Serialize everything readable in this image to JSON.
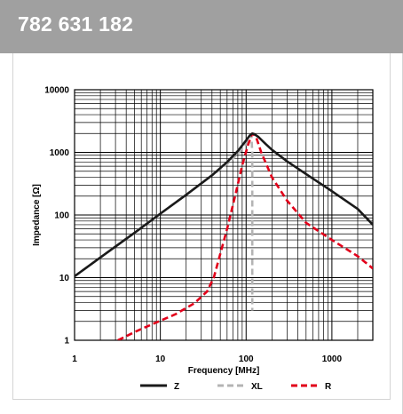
{
  "header": {
    "title": "782 631 182"
  },
  "colors": {
    "header_bg": "#a0a0a0",
    "z": "#1a1a1a",
    "xl": "#b4b4b4",
    "r": "#e2001a"
  },
  "chart_data": {
    "type": "line",
    "title": "",
    "xlabel": "Frequency [MHz]",
    "ylabel": "Impedance [Ω]",
    "x_scale": "log",
    "y_scale": "log",
    "xlim": [
      1,
      3000
    ],
    "ylim": [
      1,
      10000
    ],
    "grid": true,
    "legend_position": "bottom",
    "x_ticks": [
      {
        "value": 1,
        "label": "1"
      },
      {
        "value": 10,
        "label": "10"
      },
      {
        "value": 100,
        "label": "100"
      },
      {
        "value": 1000,
        "label": "1000"
      }
    ],
    "y_ticks": [
      {
        "value": 1,
        "label": "1"
      },
      {
        "value": 10,
        "label": "10"
      },
      {
        "value": 100,
        "label": "100"
      },
      {
        "value": 1000,
        "label": "1000"
      },
      {
        "value": 10000,
        "label": "10000"
      }
    ],
    "series": [
      {
        "name": "Z",
        "style": "solid",
        "color": "#1a1a1a",
        "points": [
          [
            1,
            10.5
          ],
          [
            2,
            21
          ],
          [
            5,
            52
          ],
          [
            10,
            105
          ],
          [
            20,
            210
          ],
          [
            40,
            430
          ],
          [
            60,
            700
          ],
          [
            80,
            1050
          ],
          [
            100,
            1550
          ],
          [
            110,
            1850
          ],
          [
            118,
            2000
          ],
          [
            125,
            1950
          ],
          [
            140,
            1750
          ],
          [
            170,
            1350
          ],
          [
            200,
            1100
          ],
          [
            300,
            720
          ],
          [
            500,
            450
          ],
          [
            1000,
            240
          ],
          [
            2000,
            125
          ],
          [
            3000,
            70
          ]
        ]
      },
      {
        "name": "XL",
        "style": "dashed",
        "color": "#b4b4b4",
        "points": [
          [
            1,
            10.5
          ],
          [
            2,
            21
          ],
          [
            5,
            52
          ],
          [
            10,
            105
          ],
          [
            20,
            210
          ],
          [
            40,
            430
          ],
          [
            60,
            650
          ],
          [
            80,
            950
          ],
          [
            100,
            1350
          ],
          [
            110,
            1700
          ],
          [
            115,
            1900
          ],
          [
            118,
            1000
          ],
          [
            118,
            3
          ]
        ]
      },
      {
        "name": "R",
        "style": "dashed",
        "color": "#e2001a",
        "points": [
          [
            3.2,
            1
          ],
          [
            5,
            1.35
          ],
          [
            8,
            1.8
          ],
          [
            15,
            2.6
          ],
          [
            25,
            3.9
          ],
          [
            35,
            6
          ],
          [
            42,
            10
          ],
          [
            50,
            24
          ],
          [
            60,
            60
          ],
          [
            75,
            210
          ],
          [
            90,
            620
          ],
          [
            105,
            1300
          ],
          [
            118,
            2000
          ],
          [
            130,
            1800
          ],
          [
            150,
            1000
          ],
          [
            200,
            400
          ],
          [
            300,
            170
          ],
          [
            500,
            75
          ],
          [
            1000,
            40
          ],
          [
            2000,
            22
          ],
          [
            3000,
            14
          ]
        ]
      }
    ]
  }
}
